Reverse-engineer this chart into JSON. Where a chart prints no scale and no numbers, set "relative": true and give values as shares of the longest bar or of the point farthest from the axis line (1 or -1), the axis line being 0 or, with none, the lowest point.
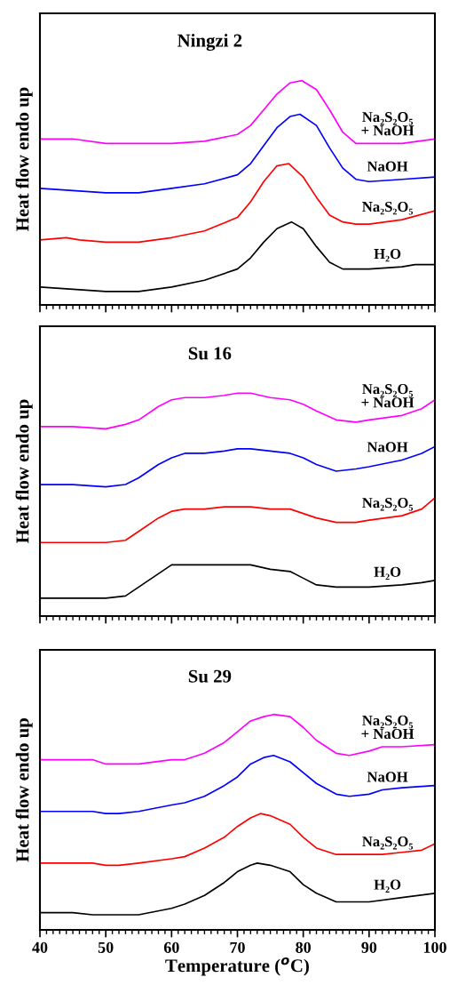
{
  "chart_data": [
    {
      "type": "line",
      "title": "Ningzi 2",
      "ylabel": "Heat flow endo up",
      "relative": true,
      "xlim": [
        40,
        100
      ],
      "xticks": [
        40,
        50,
        60,
        70,
        80,
        90,
        100
      ],
      "tick_labels": false,
      "grid": false,
      "legend": false,
      "series": [
        {
          "name": "Na₂S₂O₅\n+ NaOH",
          "color": "#ff00ff",
          "x": [
            40,
            45,
            50,
            55,
            60,
            65,
            70,
            72,
            74,
            76,
            78,
            79.8,
            82,
            84,
            86,
            88,
            90,
            95,
            100
          ],
          "values": [
            0.74,
            0.74,
            0.72,
            0.72,
            0.72,
            0.73,
            0.76,
            0.8,
            0.87,
            0.94,
            0.99,
            1.0,
            0.96,
            0.87,
            0.77,
            0.72,
            0.72,
            0.72,
            0.74
          ]
        },
        {
          "name": "NaOH",
          "color": "#0000ff",
          "x": [
            40,
            45,
            50,
            55,
            60,
            65,
            70,
            72,
            74,
            76,
            78,
            79.5,
            82,
            84,
            86,
            88,
            90,
            95,
            100
          ],
          "values": [
            0.52,
            0.51,
            0.5,
            0.5,
            0.52,
            0.54,
            0.58,
            0.63,
            0.71,
            0.79,
            0.84,
            0.85,
            0.8,
            0.7,
            0.61,
            0.56,
            0.55,
            0.56,
            0.57
          ]
        },
        {
          "name": "Na₂S₂O₅",
          "color": "#ff0000",
          "x": [
            40,
            44,
            46,
            50,
            55,
            60,
            65,
            70,
            72,
            74,
            76,
            77.8,
            80,
            82,
            84,
            86,
            88,
            90,
            95,
            100
          ],
          "values": [
            0.29,
            0.3,
            0.29,
            0.28,
            0.28,
            0.3,
            0.33,
            0.39,
            0.46,
            0.55,
            0.62,
            0.63,
            0.57,
            0.48,
            0.4,
            0.37,
            0.36,
            0.36,
            0.38,
            0.42
          ]
        },
        {
          "name": "H₂O",
          "color": "#000000",
          "x": [
            40,
            45,
            50,
            55,
            60,
            65,
            70,
            72,
            74,
            76,
            78.2,
            80,
            82,
            84,
            86,
            88,
            90,
            95,
            97,
            100
          ],
          "values": [
            0.08,
            0.07,
            0.06,
            0.06,
            0.08,
            0.11,
            0.16,
            0.21,
            0.28,
            0.34,
            0.37,
            0.34,
            0.26,
            0.19,
            0.16,
            0.16,
            0.16,
            0.17,
            0.18,
            0.18
          ]
        }
      ]
    },
    {
      "type": "line",
      "title": "Su 16",
      "ylabel": "Heat flow endo up",
      "relative": true,
      "xlim": [
        40,
        100
      ],
      "xticks": [
        40,
        50,
        60,
        70,
        80,
        90,
        100
      ],
      "tick_labels": false,
      "grid": false,
      "legend": false,
      "series": [
        {
          "name": "Na₂S₂O₅\n+ NaOH",
          "color": "#ff00ff",
          "x": [
            40,
            45,
            50,
            53,
            55,
            58,
            60,
            62,
            65,
            68,
            70,
            72,
            75,
            78,
            80,
            82,
            85,
            88,
            90,
            95,
            98,
            100
          ],
          "values": [
            0.85,
            0.85,
            0.84,
            0.86,
            0.88,
            0.94,
            0.97,
            0.98,
            0.98,
            0.99,
            1.0,
            1.0,
            0.98,
            0.97,
            0.95,
            0.92,
            0.88,
            0.87,
            0.88,
            0.9,
            0.93,
            0.97
          ]
        },
        {
          "name": "NaOH",
          "color": "#0000ff",
          "x": [
            40,
            45,
            50,
            53,
            55,
            58,
            60,
            62,
            65,
            68,
            70,
            72,
            75,
            78,
            80,
            82,
            85,
            88,
            90,
            95,
            98,
            100
          ],
          "values": [
            0.59,
            0.59,
            0.58,
            0.59,
            0.62,
            0.68,
            0.71,
            0.73,
            0.73,
            0.74,
            0.75,
            0.75,
            0.74,
            0.73,
            0.71,
            0.68,
            0.65,
            0.66,
            0.67,
            0.7,
            0.73,
            0.76
          ]
        },
        {
          "name": "Na₂S₂O₅",
          "color": "#ff0000",
          "x": [
            40,
            45,
            50,
            53,
            55,
            58,
            60,
            62,
            65,
            68,
            70,
            72,
            75,
            78,
            80,
            82,
            85,
            88,
            90,
            95,
            98,
            100
          ],
          "values": [
            0.33,
            0.33,
            0.33,
            0.34,
            0.38,
            0.44,
            0.47,
            0.48,
            0.48,
            0.49,
            0.49,
            0.49,
            0.48,
            0.48,
            0.46,
            0.44,
            0.42,
            0.42,
            0.43,
            0.45,
            0.48,
            0.53
          ]
        },
        {
          "name": "H₂O",
          "color": "#000000",
          "x": [
            40,
            45,
            50,
            53,
            55,
            58,
            60,
            62,
            65,
            68,
            70,
            72,
            75,
            78,
            80,
            82,
            85,
            88,
            90,
            95,
            98,
            100
          ],
          "values": [
            0.08,
            0.08,
            0.08,
            0.09,
            0.13,
            0.19,
            0.23,
            0.23,
            0.23,
            0.23,
            0.23,
            0.23,
            0.21,
            0.2,
            0.17,
            0.14,
            0.13,
            0.13,
            0.13,
            0.14,
            0.15,
            0.16
          ]
        }
      ]
    },
    {
      "type": "line",
      "title": "Su 29",
      "xlabel": "Temperature ($^{o}$C)",
      "ylabel": "Heat flow endo up",
      "relative": true,
      "xlim": [
        40,
        100
      ],
      "xticks": [
        40,
        50,
        60,
        70,
        80,
        90,
        100
      ],
      "tick_labels": "x",
      "grid": false,
      "legend": false,
      "series": [
        {
          "name": "Na₂S₂O₅\n+ NaOH",
          "color": "#ff00ff",
          "x": [
            40,
            45,
            48,
            50,
            52,
            55,
            60,
            62,
            65,
            68,
            70,
            72,
            74,
            75.5,
            78,
            80,
            82,
            85,
            87,
            90,
            92,
            95,
            100
          ],
          "values": [
            0.79,
            0.79,
            0.79,
            0.77,
            0.77,
            0.77,
            0.79,
            0.79,
            0.82,
            0.87,
            0.92,
            0.97,
            0.99,
            1.0,
            0.99,
            0.94,
            0.88,
            0.82,
            0.81,
            0.83,
            0.85,
            0.85,
            0.86
          ]
        },
        {
          "name": "NaOH",
          "color": "#0000ff",
          "x": [
            40,
            45,
            48,
            50,
            52,
            55,
            60,
            62,
            65,
            68,
            70,
            72,
            74,
            75.5,
            78,
            80,
            82,
            85,
            87,
            90,
            92,
            95,
            100
          ],
          "values": [
            0.55,
            0.55,
            0.55,
            0.54,
            0.54,
            0.55,
            0.58,
            0.59,
            0.62,
            0.67,
            0.71,
            0.77,
            0.8,
            0.81,
            0.78,
            0.73,
            0.68,
            0.63,
            0.62,
            0.63,
            0.65,
            0.66,
            0.67
          ]
        },
        {
          "name": "Na₂S₂O₅",
          "color": "#ff0000",
          "x": [
            40,
            45,
            48,
            50,
            52,
            55,
            60,
            62,
            65,
            68,
            70,
            72,
            73.5,
            75,
            78,
            80,
            82,
            85,
            87,
            90,
            92,
            95,
            98,
            100
          ],
          "values": [
            0.31,
            0.31,
            0.31,
            0.3,
            0.3,
            0.31,
            0.33,
            0.34,
            0.38,
            0.43,
            0.48,
            0.52,
            0.54,
            0.53,
            0.49,
            0.43,
            0.38,
            0.35,
            0.35,
            0.35,
            0.35,
            0.36,
            0.37,
            0.4
          ]
        },
        {
          "name": "H₂O",
          "color": "#000000",
          "x": [
            40,
            45,
            48,
            50,
            52,
            55,
            60,
            62,
            65,
            68,
            70,
            72,
            73,
            75,
            78,
            80,
            82,
            85,
            87,
            90,
            95,
            100
          ],
          "values": [
            0.08,
            0.08,
            0.07,
            0.07,
            0.07,
            0.07,
            0.1,
            0.12,
            0.16,
            0.22,
            0.27,
            0.3,
            0.31,
            0.3,
            0.27,
            0.21,
            0.17,
            0.13,
            0.13,
            0.13,
            0.15,
            0.17
          ]
        }
      ]
    }
  ]
}
